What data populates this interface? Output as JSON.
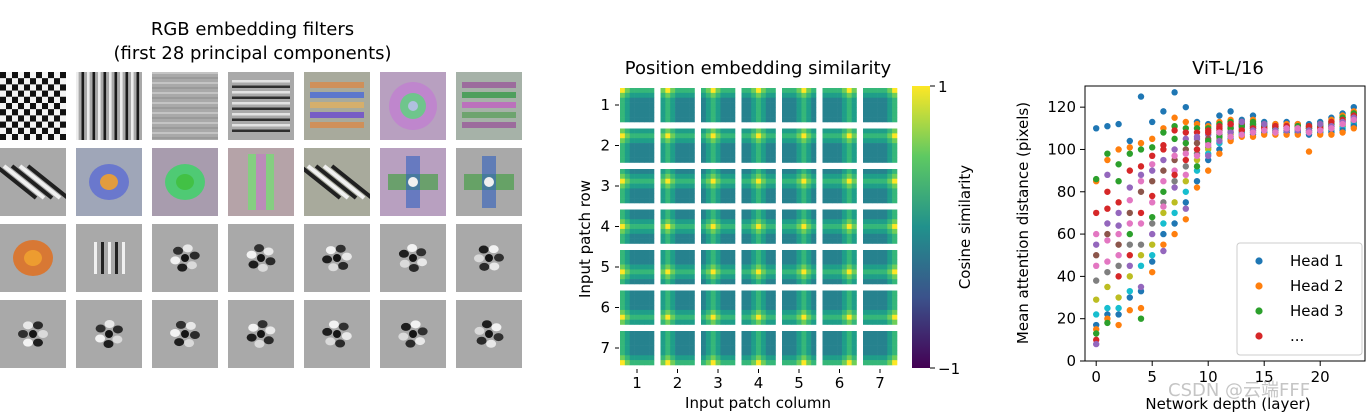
{
  "chart_data": [
    {
      "type": "heatmap",
      "title_lines": [
        "RGB embedding filters",
        "(first 28 principal components)"
      ],
      "rows": 4,
      "columns": 7
    },
    {
      "type": "heatmap",
      "title": "Position embedding similarity",
      "xlabel": "Input patch column",
      "ylabel": "Input patch row",
      "x_ticks": [
        "1",
        "2",
        "3",
        "4",
        "5",
        "6",
        "7"
      ],
      "y_ticks": [
        "1",
        "2",
        "3",
        "4",
        "5",
        "6",
        "7"
      ],
      "colorbar": {
        "label": "Cosine similarity",
        "ticks": [
          "1",
          "−1"
        ],
        "range": [
          -1,
          1
        ],
        "colormap": "viridis"
      }
    },
    {
      "type": "scatter",
      "title": "ViT-L/16",
      "xlabel": "Network depth (layer)",
      "ylabel": "Mean attention distance (pixels)",
      "xlim": [
        -1,
        24
      ],
      "ylim": [
        0,
        130
      ],
      "x_ticks": [
        0,
        5,
        10,
        15,
        20
      ],
      "y_ticks": [
        0,
        20,
        40,
        60,
        80,
        100,
        120
      ],
      "legend": {
        "placement": "lower-right",
        "entries": [
          {
            "label": "Head 1",
            "color": "#1f77b4"
          },
          {
            "label": "Head 2",
            "color": "#ff7f0e"
          },
          {
            "label": "Head 3",
            "color": "#2ca02c"
          },
          {
            "label": "...",
            "color": "#d62728"
          }
        ]
      },
      "head_colors": [
        "#1f77b4",
        "#ff7f0e",
        "#2ca02c",
        "#d62728",
        "#9467bd",
        "#8c564b",
        "#e377c2",
        "#7f7f7f",
        "#bcbd22",
        "#17becf",
        "#1f77b4",
        "#ff7f0e",
        "#2ca02c",
        "#d62728",
        "#9467bd",
        "#e377c2"
      ],
      "series": [
        {
          "x": 0,
          "y": [
            110,
            85,
            86,
            70,
            55,
            50,
            45,
            38,
            29,
            22,
            17,
            15,
            13,
            10,
            8,
            60
          ]
        },
        {
          "x": 1,
          "y": [
            111,
            95,
            98,
            80,
            65,
            60,
            57,
            42,
            35,
            25,
            22,
            20,
            18,
            72,
            88,
            47
          ]
        },
        {
          "x": 2,
          "y": [
            112,
            100,
            93,
            75,
            64,
            55,
            50,
            45,
            30,
            25,
            22,
            17,
            85,
            40,
            70,
            60
          ]
        },
        {
          "x": 3,
          "y": [
            104,
            101,
            98,
            90,
            82,
            70,
            65,
            55,
            40,
            33,
            30,
            24,
            60,
            50,
            45,
            76
          ]
        },
        {
          "x": 4,
          "y": [
            125,
            103,
            100,
            92,
            88,
            80,
            65,
            55,
            50,
            45,
            33,
            25,
            20,
            70,
            35,
            85
          ]
        },
        {
          "x": 5,
          "y": [
            113,
            105,
            101,
            97,
            90,
            85,
            75,
            65,
            55,
            50,
            47,
            42,
            68,
            78,
            60,
            93
          ]
        },
        {
          "x": 6,
          "y": [
            118,
            110,
            108,
            102,
            95,
            90,
            85,
            75,
            70,
            65,
            60,
            55,
            80,
            100,
            52,
            73
          ]
        },
        {
          "x": 7,
          "y": [
            127,
            115,
            111,
            109,
            100,
            95,
            90,
            85,
            75,
            70,
            65,
            60,
            105,
            88,
            82,
            97
          ]
        },
        {
          "x": 8,
          "y": [
            120,
            113,
            110,
            108,
            105,
            100,
            98,
            92,
            85,
            80,
            75,
            67,
            103,
            95,
            72,
            88
          ]
        },
        {
          "x": 9,
          "y": [
            113,
            112,
            110,
            108,
            105,
            103,
            100,
            98,
            95,
            90,
            85,
            82,
            92,
            100,
            106,
            97
          ]
        },
        {
          "x": 10,
          "y": [
            112,
            111,
            110,
            109,
            107,
            105,
            103,
            101,
            100,
            98,
            95,
            90,
            104,
            108,
            97,
            102
          ]
        },
        {
          "x": 11,
          "y": [
            116,
            113,
            112,
            111,
            110,
            109,
            108,
            107,
            105,
            103,
            100,
            98,
            106,
            110,
            104,
            108
          ]
        },
        {
          "x": 12,
          "y": [
            118,
            114,
            113,
            112,
            111,
            110,
            109,
            108,
            107,
            106,
            105,
            104,
            110,
            112,
            108,
            106
          ]
        },
        {
          "x": 13,
          "y": [
            114,
            113,
            112,
            112,
            111,
            110,
            110,
            109,
            108,
            108,
            107,
            106,
            111,
            109,
            113,
            107
          ]
        },
        {
          "x": 14,
          "y": [
            116,
            114,
            113,
            112,
            111,
            111,
            110,
            110,
            109,
            108,
            107,
            106,
            112,
            110,
            109,
            108
          ]
        },
        {
          "x": 15,
          "y": [
            113,
            112,
            112,
            111,
            111,
            110,
            110,
            109,
            109,
            108,
            108,
            107,
            111,
            110,
            112,
            109
          ]
        },
        {
          "x": 16,
          "y": [
            112,
            112,
            111,
            111,
            110,
            110,
            110,
            109,
            109,
            108,
            108,
            107,
            110,
            111,
            109,
            108
          ]
        },
        {
          "x": 17,
          "y": [
            113,
            112,
            111,
            111,
            110,
            110,
            109,
            109,
            109,
            108,
            108,
            107,
            110,
            111,
            109,
            110
          ]
        },
        {
          "x": 18,
          "y": [
            112,
            112,
            111,
            111,
            110,
            110,
            110,
            109,
            109,
            108,
            108,
            107,
            111,
            110,
            109,
            110
          ]
        },
        {
          "x": 19,
          "y": [
            112,
            111,
            111,
            110,
            110,
            110,
            109,
            109,
            108,
            108,
            107,
            99,
            110,
            111,
            109,
            108
          ]
        },
        {
          "x": 20,
          "y": [
            113,
            112,
            112,
            111,
            111,
            110,
            110,
            109,
            109,
            108,
            108,
            107,
            111,
            110,
            112,
            109
          ]
        },
        {
          "x": 21,
          "y": [
            115,
            114,
            113,
            112,
            111,
            111,
            110,
            110,
            109,
            109,
            108,
            107,
            112,
            113,
            111,
            110
          ]
        },
        {
          "x": 22,
          "y": [
            117,
            116,
            115,
            114,
            113,
            112,
            112,
            111,
            111,
            110,
            109,
            108,
            115,
            114,
            113,
            112
          ]
        },
        {
          "x": 23,
          "y": [
            120,
            118,
            117,
            116,
            115,
            114,
            113,
            113,
            112,
            112,
            111,
            110,
            117,
            116,
            115,
            114
          ]
        }
      ]
    }
  ],
  "watermark": "CSDN @云端FFF"
}
